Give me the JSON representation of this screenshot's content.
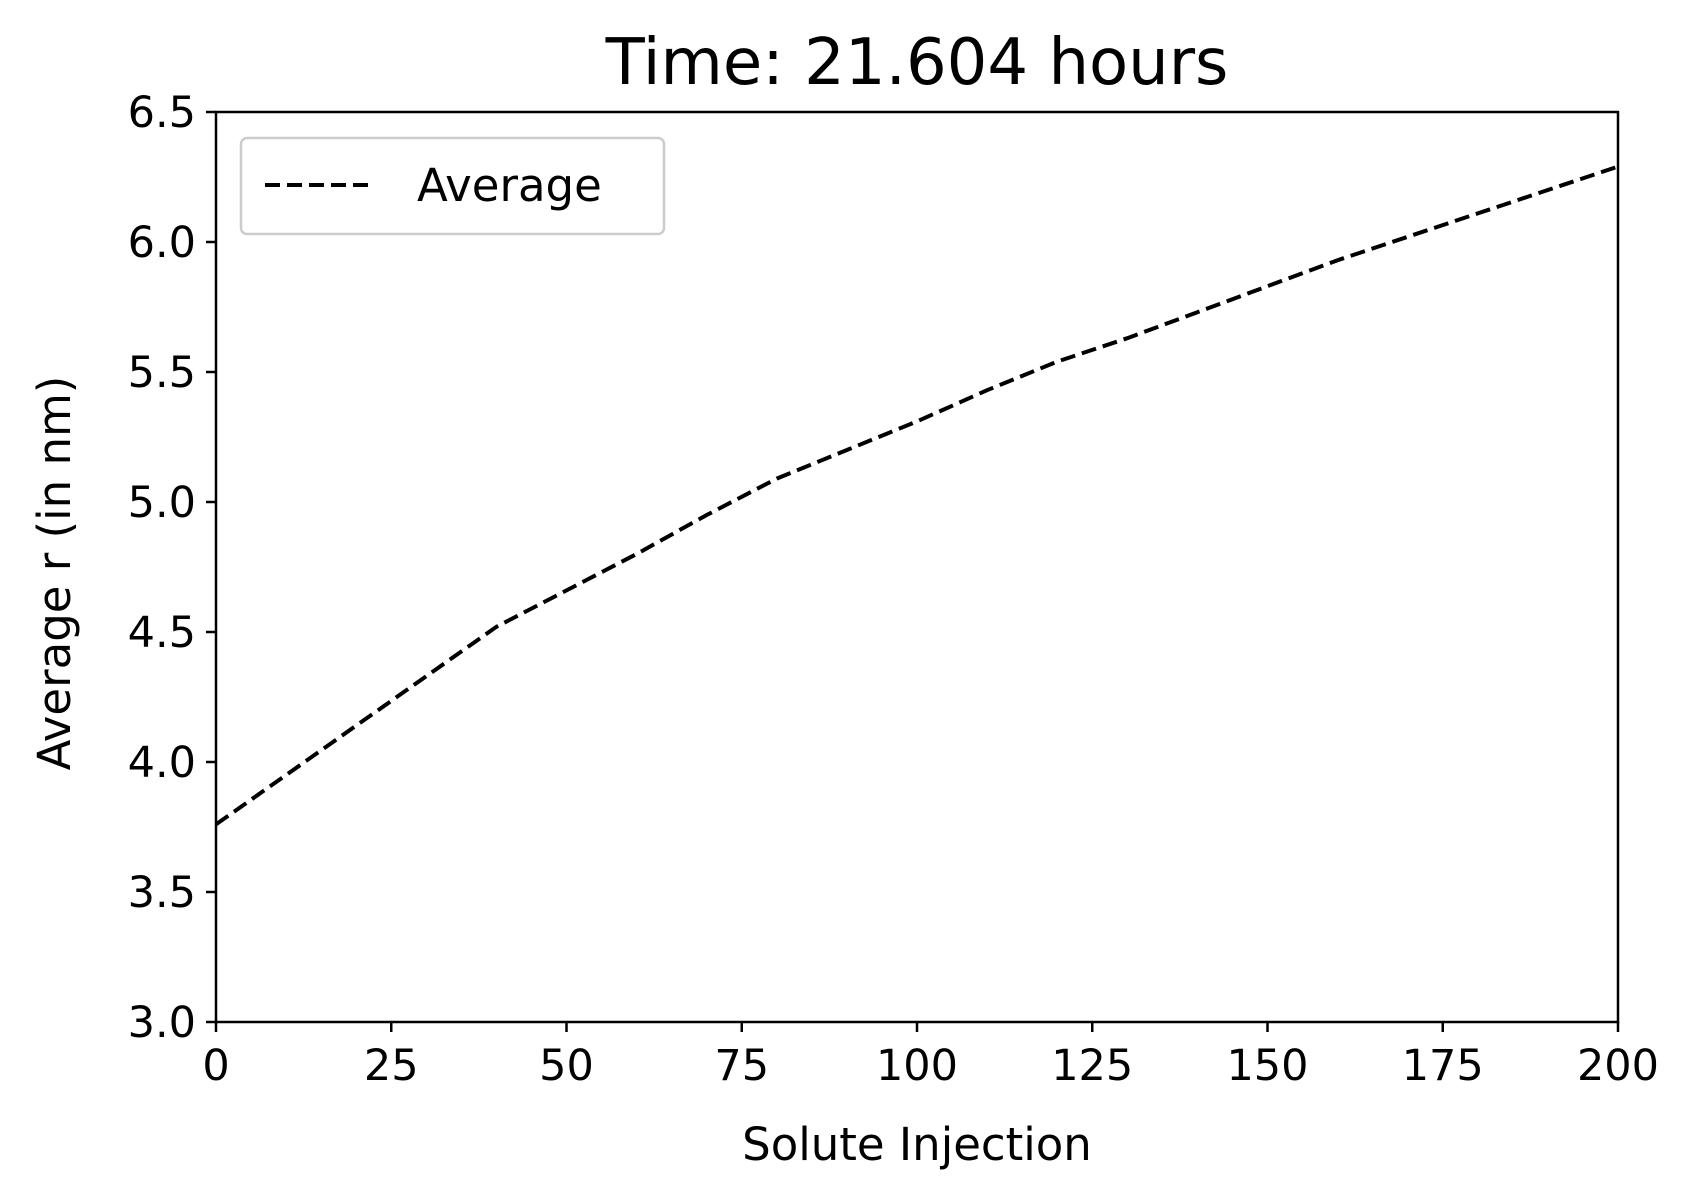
{
  "chart_data": {
    "type": "line",
    "title": "Time: 21.604 hours",
    "xlabel": "Solute Injection",
    "ylabel": "Average r (in nm)",
    "xlim": [
      0,
      200
    ],
    "ylim": [
      3.0,
      6.5
    ],
    "xticks": [
      0,
      25,
      50,
      75,
      100,
      125,
      150,
      175,
      200
    ],
    "xtick_labels": [
      "0",
      "25",
      "50",
      "75",
      "100",
      "125",
      "150",
      "175",
      "200"
    ],
    "yticks": [
      3.0,
      3.5,
      4.0,
      4.5,
      5.0,
      5.5,
      6.0,
      6.5
    ],
    "ytick_labels": [
      "3.0",
      "3.5",
      "4.0",
      "4.5",
      "5.0",
      "5.5",
      "6.0",
      "6.5"
    ],
    "grid": false,
    "legend_position": "top-left",
    "series": [
      {
        "name": "Average",
        "line_style": "dashed",
        "color": "#000000",
        "x": [
          0,
          10,
          20,
          30,
          40,
          50,
          60,
          70,
          80,
          90,
          100,
          110,
          120,
          130,
          140,
          150,
          160,
          170,
          180,
          190,
          200
        ],
        "y": [
          3.76,
          3.95,
          4.14,
          4.33,
          4.52,
          4.66,
          4.8,
          4.95,
          5.09,
          5.2,
          5.31,
          5.43,
          5.54,
          5.63,
          5.73,
          5.83,
          5.93,
          6.02,
          6.11,
          6.2,
          6.29
        ]
      }
    ]
  }
}
